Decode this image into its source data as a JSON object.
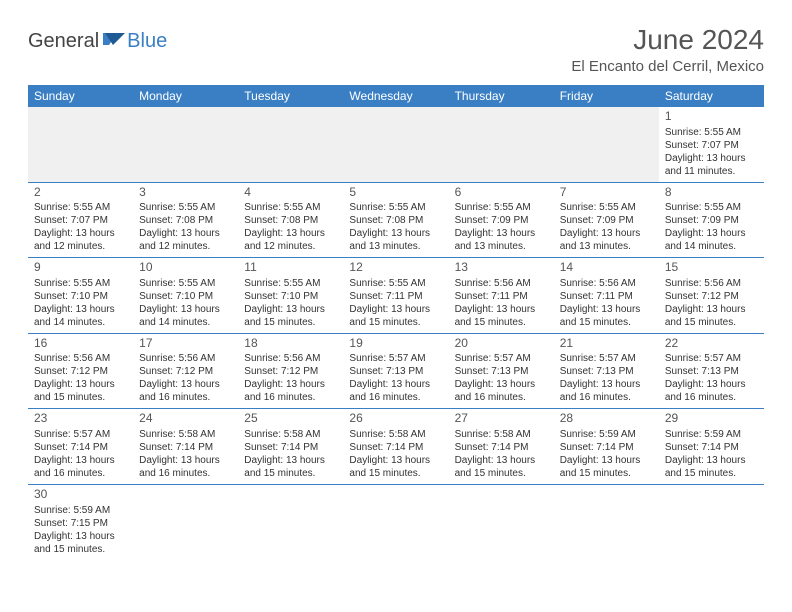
{
  "logo": {
    "part1": "General",
    "part2": "Blue"
  },
  "title": "June 2024",
  "location": "El Encanto del Cerril, Mexico",
  "colors": {
    "header_bg": "#3a7fc4",
    "header_text": "#ffffff",
    "border": "#3a7fc4",
    "text": "#333333",
    "title_text": "#555555"
  },
  "weekdays": [
    "Sunday",
    "Monday",
    "Tuesday",
    "Wednesday",
    "Thursday",
    "Friday",
    "Saturday"
  ],
  "weeks": [
    [
      null,
      null,
      null,
      null,
      null,
      null,
      {
        "n": "1",
        "sr": "5:55 AM",
        "ss": "7:07 PM",
        "dl": "13 hours and 11 minutes."
      }
    ],
    [
      {
        "n": "2",
        "sr": "5:55 AM",
        "ss": "7:07 PM",
        "dl": "13 hours and 12 minutes."
      },
      {
        "n": "3",
        "sr": "5:55 AM",
        "ss": "7:08 PM",
        "dl": "13 hours and 12 minutes."
      },
      {
        "n": "4",
        "sr": "5:55 AM",
        "ss": "7:08 PM",
        "dl": "13 hours and 12 minutes."
      },
      {
        "n": "5",
        "sr": "5:55 AM",
        "ss": "7:08 PM",
        "dl": "13 hours and 13 minutes."
      },
      {
        "n": "6",
        "sr": "5:55 AM",
        "ss": "7:09 PM",
        "dl": "13 hours and 13 minutes."
      },
      {
        "n": "7",
        "sr": "5:55 AM",
        "ss": "7:09 PM",
        "dl": "13 hours and 13 minutes."
      },
      {
        "n": "8",
        "sr": "5:55 AM",
        "ss": "7:09 PM",
        "dl": "13 hours and 14 minutes."
      }
    ],
    [
      {
        "n": "9",
        "sr": "5:55 AM",
        "ss": "7:10 PM",
        "dl": "13 hours and 14 minutes."
      },
      {
        "n": "10",
        "sr": "5:55 AM",
        "ss": "7:10 PM",
        "dl": "13 hours and 14 minutes."
      },
      {
        "n": "11",
        "sr": "5:55 AM",
        "ss": "7:10 PM",
        "dl": "13 hours and 15 minutes."
      },
      {
        "n": "12",
        "sr": "5:55 AM",
        "ss": "7:11 PM",
        "dl": "13 hours and 15 minutes."
      },
      {
        "n": "13",
        "sr": "5:56 AM",
        "ss": "7:11 PM",
        "dl": "13 hours and 15 minutes."
      },
      {
        "n": "14",
        "sr": "5:56 AM",
        "ss": "7:11 PM",
        "dl": "13 hours and 15 minutes."
      },
      {
        "n": "15",
        "sr": "5:56 AM",
        "ss": "7:12 PM",
        "dl": "13 hours and 15 minutes."
      }
    ],
    [
      {
        "n": "16",
        "sr": "5:56 AM",
        "ss": "7:12 PM",
        "dl": "13 hours and 15 minutes."
      },
      {
        "n": "17",
        "sr": "5:56 AM",
        "ss": "7:12 PM",
        "dl": "13 hours and 16 minutes."
      },
      {
        "n": "18",
        "sr": "5:56 AM",
        "ss": "7:12 PM",
        "dl": "13 hours and 16 minutes."
      },
      {
        "n": "19",
        "sr": "5:57 AM",
        "ss": "7:13 PM",
        "dl": "13 hours and 16 minutes."
      },
      {
        "n": "20",
        "sr": "5:57 AM",
        "ss": "7:13 PM",
        "dl": "13 hours and 16 minutes."
      },
      {
        "n": "21",
        "sr": "5:57 AM",
        "ss": "7:13 PM",
        "dl": "13 hours and 16 minutes."
      },
      {
        "n": "22",
        "sr": "5:57 AM",
        "ss": "7:13 PM",
        "dl": "13 hours and 16 minutes."
      }
    ],
    [
      {
        "n": "23",
        "sr": "5:57 AM",
        "ss": "7:14 PM",
        "dl": "13 hours and 16 minutes."
      },
      {
        "n": "24",
        "sr": "5:58 AM",
        "ss": "7:14 PM",
        "dl": "13 hours and 16 minutes."
      },
      {
        "n": "25",
        "sr": "5:58 AM",
        "ss": "7:14 PM",
        "dl": "13 hours and 15 minutes."
      },
      {
        "n": "26",
        "sr": "5:58 AM",
        "ss": "7:14 PM",
        "dl": "13 hours and 15 minutes."
      },
      {
        "n": "27",
        "sr": "5:58 AM",
        "ss": "7:14 PM",
        "dl": "13 hours and 15 minutes."
      },
      {
        "n": "28",
        "sr": "5:59 AM",
        "ss": "7:14 PM",
        "dl": "13 hours and 15 minutes."
      },
      {
        "n": "29",
        "sr": "5:59 AM",
        "ss": "7:14 PM",
        "dl": "13 hours and 15 minutes."
      }
    ],
    [
      {
        "n": "30",
        "sr": "5:59 AM",
        "ss": "7:15 PM",
        "dl": "13 hours and 15 minutes."
      },
      null,
      null,
      null,
      null,
      null,
      null
    ]
  ],
  "labels": {
    "sunrise": "Sunrise: ",
    "sunset": "Sunset: ",
    "daylight": "Daylight: "
  }
}
